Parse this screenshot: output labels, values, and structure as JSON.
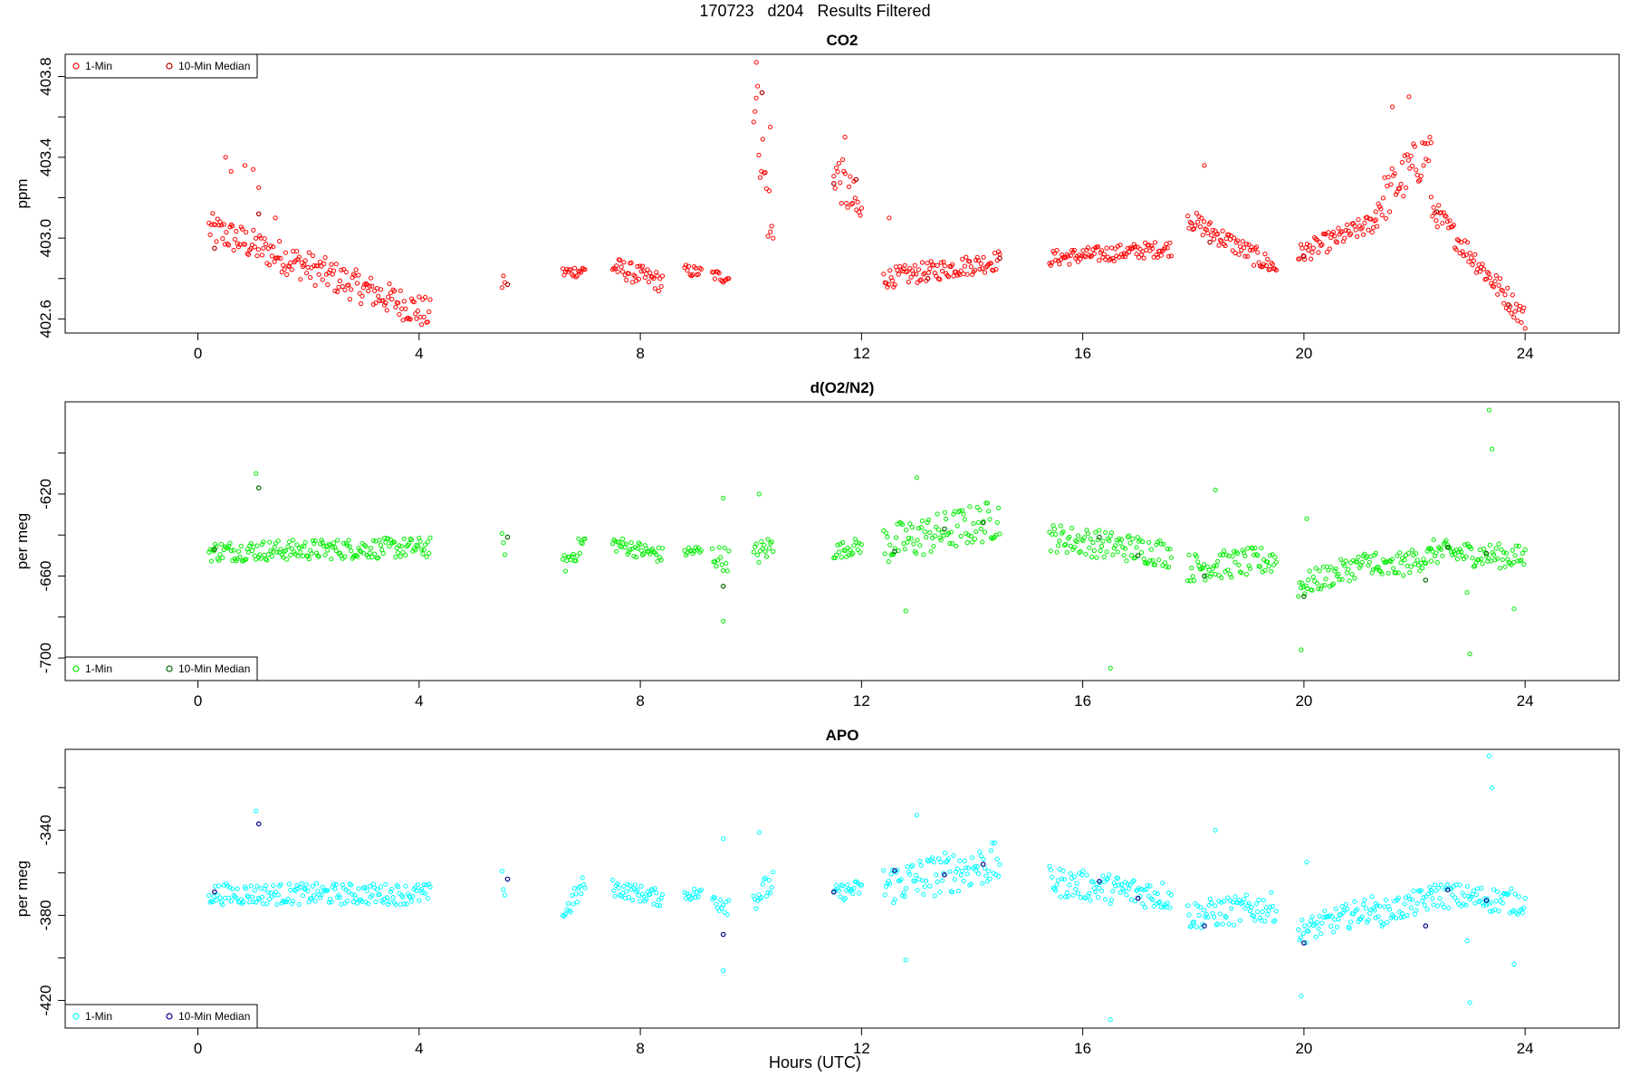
{
  "page": {
    "title": "170723   d204   Results Filtered",
    "xlabel": "Hours (UTC)"
  },
  "chart_data": [
    {
      "type": "scatter",
      "title": "CO2",
      "ylabel": "ppm",
      "xlim": [
        -2.4,
        25.7
      ],
      "ylim": [
        402.53,
        403.91
      ],
      "xticks": [
        0,
        4,
        8,
        12,
        16,
        20,
        24
      ],
      "yticks": [
        402.6,
        402.8,
        403.0,
        403.2,
        403.4,
        403.6,
        403.8
      ],
      "ytick_labels": [
        "402.6",
        "",
        "403.0",
        "",
        "403.4",
        "",
        "403.8"
      ],
      "legend_position": "top-left",
      "legend": [
        "1-Min",
        "10-Min Median"
      ],
      "series": [
        {
          "name": "1-Min",
          "color": "#ff0000",
          "segments": [
            {
              "x0": 0.2,
              "x1": 4.2,
              "y0": 403.05,
              "y1": 402.62,
              "spread": 0.08
            },
            {
              "x0": 5.5,
              "x1": 5.55,
              "y0": 402.78,
              "y1": 402.8,
              "spread": 0.05
            },
            {
              "x0": 6.6,
              "x1": 7.0,
              "y0": 402.83,
              "y1": 402.84,
              "spread": 0.03
            },
            {
              "x0": 7.5,
              "x1": 8.4,
              "y0": 402.86,
              "y1": 402.78,
              "spread": 0.05
            },
            {
              "x0": 8.8,
              "x1": 9.1,
              "y0": 402.84,
              "y1": 402.83,
              "spread": 0.03
            },
            {
              "x0": 9.3,
              "x1": 9.6,
              "y0": 402.82,
              "y1": 402.8,
              "spread": 0.03
            },
            {
              "x0": 10.05,
              "x1": 10.4,
              "y0": 403.75,
              "y1": 402.95,
              "spread": 0.2
            },
            {
              "x0": 11.5,
              "x1": 12.0,
              "y0": 403.35,
              "y1": 403.1,
              "spread": 0.12
            },
            {
              "x0": 12.4,
              "x1": 14.5,
              "y0": 402.8,
              "y1": 402.89,
              "spread": 0.05
            },
            {
              "x0": 15.4,
              "x1": 17.6,
              "y0": 402.9,
              "y1": 402.95,
              "spread": 0.04
            },
            {
              "x0": 17.9,
              "x1": 19.5,
              "y0": 403.1,
              "y1": 402.85,
              "spread": 0.05
            },
            {
              "x0": 19.9,
              "x1": 21.3,
              "y0": 402.92,
              "y1": 403.08,
              "spread": 0.05
            },
            {
              "x0": 21.3,
              "x1": 22.3,
              "y0": 403.15,
              "y1": 403.45,
              "spread": 0.12
            },
            {
              "x0": 22.3,
              "x1": 24.0,
              "y0": 403.15,
              "y1": 402.6,
              "spread": 0.06
            }
          ],
          "extras": [
            [
              0.5,
              403.4
            ],
            [
              0.6,
              403.33
            ],
            [
              0.85,
              403.36
            ],
            [
              1.0,
              403.34
            ],
            [
              1.1,
              403.25
            ],
            [
              1.4,
              403.1
            ],
            [
              10.1,
              403.87
            ],
            [
              10.35,
              403.55
            ],
            [
              11.7,
              403.5
            ],
            [
              12.5,
              403.1
            ],
            [
              18.2,
              403.36
            ],
            [
              21.9,
              403.7
            ],
            [
              21.6,
              403.65
            ]
          ]
        },
        {
          "name": "10-Min Median",
          "color": "#b00000",
          "points": [
            [
              0.3,
              402.95
            ],
            [
              1.1,
              403.12
            ],
            [
              5.6,
              402.77
            ],
            [
              10.2,
              403.72
            ],
            [
              11.5,
              403.27
            ],
            [
              11.9,
              403.29
            ],
            [
              13.2,
              402.8
            ],
            [
              14.5,
              402.9
            ],
            [
              18.3,
              402.98
            ],
            [
              20.0,
              402.91
            ],
            [
              22.4,
              403.13
            ],
            [
              23.7,
              402.67
            ]
          ]
        }
      ]
    },
    {
      "type": "scatter",
      "title": "d(O2/N2)",
      "ylabel": "per meg",
      "xlim": [
        -2.4,
        25.7
      ],
      "ylim": [
        -711,
        -575
      ],
      "xticks": [
        0,
        4,
        8,
        12,
        16,
        20,
        24
      ],
      "yticks": [
        -700,
        -680,
        -660,
        -640,
        -620,
        -600
      ],
      "ytick_labels": [
        "-700",
        "",
        "-660",
        "",
        "-620",
        ""
      ],
      "legend_position": "bottom-left",
      "legend": [
        "1-Min",
        "10-Min Median"
      ],
      "series": [
        {
          "name": "1-Min",
          "color": "#00ee00",
          "segments": [
            {
              "x0": 0.2,
              "x1": 4.2,
              "y0": -648,
              "y1": -646,
              "spread": 5
            },
            {
              "x0": 5.5,
              "x1": 5.55,
              "y0": -642,
              "y1": -647,
              "spread": 3
            },
            {
              "x0": 6.6,
              "x1": 7.0,
              "y0": -655,
              "y1": -643,
              "spread": 5
            },
            {
              "x0": 7.5,
              "x1": 8.4,
              "y0": -644,
              "y1": -650,
              "spread": 4
            },
            {
              "x0": 8.8,
              "x1": 9.1,
              "y0": -648,
              "y1": -648,
              "spread": 3
            },
            {
              "x0": 9.3,
              "x1": 9.6,
              "y0": -650,
              "y1": -652,
              "spread": 6
            },
            {
              "x0": 10.05,
              "x1": 10.4,
              "y0": -650,
              "y1": -645,
              "spread": 6
            },
            {
              "x0": 11.5,
              "x1": 12.0,
              "y0": -648,
              "y1": -645,
              "spread": 4
            },
            {
              "x0": 12.4,
              "x1": 14.5,
              "y0": -645,
              "y1": -632,
              "spread": 10
            },
            {
              "x0": 15.4,
              "x1": 17.6,
              "y0": -641,
              "y1": -649,
              "spread": 7
            },
            {
              "x0": 17.9,
              "x1": 19.5,
              "y0": -656,
              "y1": -652,
              "spread": 7
            },
            {
              "x0": 19.9,
              "x1": 21.3,
              "y0": -665,
              "y1": -652,
              "spread": 6
            },
            {
              "x0": 21.3,
              "x1": 22.3,
              "y0": -658,
              "y1": -650,
              "spread": 6
            },
            {
              "x0": 22.3,
              "x1": 24.0,
              "y0": -648,
              "y1": -651,
              "spread": 6
            }
          ],
          "extras": [
            [
              1.05,
              -610
            ],
            [
              9.5,
              -622
            ],
            [
              9.5,
              -682
            ],
            [
              10.15,
              -620
            ],
            [
              13.0,
              -612
            ],
            [
              12.8,
              -677
            ],
            [
              16.5,
              -705
            ],
            [
              18.4,
              -618
            ],
            [
              19.95,
              -696
            ],
            [
              20.05,
              -632
            ],
            [
              23.0,
              -698
            ],
            [
              23.35,
              -579
            ],
            [
              23.4,
              -598
            ],
            [
              23.8,
              -676
            ],
            [
              22.95,
              -668
            ]
          ]
        },
        {
          "name": "10-Min Median",
          "color": "#006400",
          "points": [
            [
              0.3,
              -647
            ],
            [
              1.1,
              -617
            ],
            [
              5.6,
              -641
            ],
            [
              9.5,
              -665
            ],
            [
              12.6,
              -648
            ],
            [
              13.5,
              -637
            ],
            [
              14.2,
              -634
            ],
            [
              16.3,
              -641
            ],
            [
              17.0,
              -650
            ],
            [
              18.2,
              -660
            ],
            [
              20.0,
              -670
            ],
            [
              22.2,
              -662
            ],
            [
              22.6,
              -646
            ],
            [
              23.3,
              -649
            ]
          ]
        }
      ]
    },
    {
      "type": "scatter",
      "title": "APO",
      "ylabel": "per meg",
      "xlim": [
        -2.4,
        25.7
      ],
      "ylim": [
        -433,
        -302
      ],
      "xticks": [
        0,
        4,
        8,
        12,
        16,
        20,
        24
      ],
      "yticks": [
        -420,
        -400,
        -380,
        -360,
        -340,
        -320
      ],
      "ytick_labels": [
        "-420",
        "",
        "-380",
        "",
        "-340",
        ""
      ],
      "legend_position": "bottom-left",
      "legend": [
        "1-Min",
        "10-Min Median"
      ],
      "series": [
        {
          "name": "1-Min",
          "color": "#00ffff",
          "segments": [
            {
              "x0": 0.2,
              "x1": 4.2,
              "y0": -370,
              "y1": -370,
              "spread": 5
            },
            {
              "x0": 5.5,
              "x1": 5.55,
              "y0": -362,
              "y1": -369,
              "spread": 3
            },
            {
              "x0": 6.6,
              "x1": 7.0,
              "y0": -380,
              "y1": -365,
              "spread": 5
            },
            {
              "x0": 7.5,
              "x1": 8.4,
              "y0": -367,
              "y1": -372,
              "spread": 4
            },
            {
              "x0": 8.8,
              "x1": 9.1,
              "y0": -370,
              "y1": -370,
              "spread": 3
            },
            {
              "x0": 9.3,
              "x1": 9.6,
              "y0": -372,
              "y1": -374,
              "spread": 6
            },
            {
              "x0": 10.05,
              "x1": 10.4,
              "y0": -372,
              "y1": -365,
              "spread": 6
            },
            {
              "x0": 11.5,
              "x1": 12.0,
              "y0": -370,
              "y1": -367,
              "spread": 4
            },
            {
              "x0": 12.4,
              "x1": 14.5,
              "y0": -366,
              "y1": -355,
              "spread": 10
            },
            {
              "x0": 15.4,
              "x1": 17.6,
              "y0": -364,
              "y1": -371,
              "spread": 7
            },
            {
              "x0": 17.9,
              "x1": 19.5,
              "y0": -380,
              "y1": -376,
              "spread": 7
            },
            {
              "x0": 19.9,
              "x1": 21.3,
              "y0": -388,
              "y1": -376,
              "spread": 6
            },
            {
              "x0": 21.3,
              "x1": 22.3,
              "y0": -380,
              "y1": -372,
              "spread": 6
            },
            {
              "x0": 22.3,
              "x1": 24.0,
              "y0": -370,
              "y1": -374,
              "spread": 6
            }
          ],
          "extras": [
            [
              1.05,
              -331
            ],
            [
              9.5,
              -344
            ],
            [
              9.5,
              -406
            ],
            [
              10.15,
              -341
            ],
            [
              13.0,
              -333
            ],
            [
              12.8,
              -401
            ],
            [
              16.5,
              -429
            ],
            [
              18.4,
              -340
            ],
            [
              19.95,
              -418
            ],
            [
              20.05,
              -355
            ],
            [
              23.0,
              -421
            ],
            [
              23.35,
              -305
            ],
            [
              23.4,
              -320
            ],
            [
              23.8,
              -403
            ],
            [
              22.95,
              -392
            ]
          ]
        },
        {
          "name": "10-Min Median",
          "color": "#00008b",
          "points": [
            [
              0.3,
              -369
            ],
            [
              1.1,
              -337
            ],
            [
              5.6,
              -363
            ],
            [
              9.5,
              -389
            ],
            [
              11.5,
              -369
            ],
            [
              12.6,
              -359
            ],
            [
              13.5,
              -361
            ],
            [
              14.2,
              -356
            ],
            [
              16.3,
              -364
            ],
            [
              17.0,
              -372
            ],
            [
              18.2,
              -385
            ],
            [
              20.0,
              -393
            ],
            [
              22.2,
              -385
            ],
            [
              22.6,
              -368
            ],
            [
              23.3,
              -373
            ]
          ]
        }
      ]
    }
  ]
}
